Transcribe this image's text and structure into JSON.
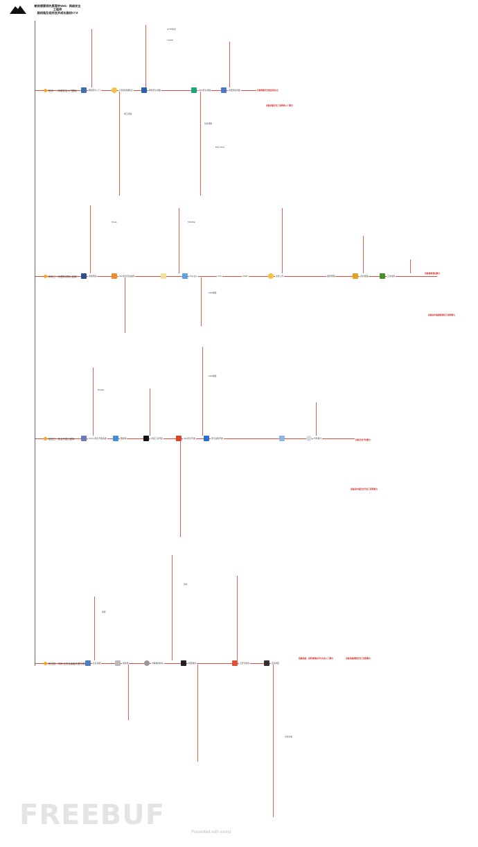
{
  "title_lines": [
    "敏锐想要领先黑客的Web · 网络安全",
    "工程师",
    "路线路及相关技术成长路线V7.8"
  ],
  "stages": [
    {
      "label": "阶段一：网络安全入门基础"
    },
    {
      "label": "阶段二：渗透测试核心技能"
    },
    {
      "label": "阶段三：安全开发工程师"
    },
    {
      "label": "阶段四：内网·云安全高级渗透与攻防"
    }
  ],
  "annotations": {
    "s1": "具备网络安全相关知识点",
    "s1_end": "具备初级安全工程师的入门能力",
    "s2": "具备渗透测试能力",
    "s2_end": "具备初中级渗透测试工程师能力",
    "s3": "具备安全开发能力",
    "s3_end": "具备初中级安全开发工程师能力",
    "s4_a": "掌握高级、高阶渗透技术方向及入门能力",
    "s4_b": "具备高级网络安全工程师能力"
  },
  "stage1_modules": [
    "网络安全入门",
    "计算机基础知识",
    "网络安全基础",
    "Web安全基础",
    "Linux系统",
    "渗透测试基础"
  ],
  "stage2_modules": [
    "渗透测试",
    "Web安全实战进阶",
    "SQL注入",
    "XSS",
    "CSRF",
    "文件上传",
    "漏洞原理",
    "逆向基础",
    "工具使用"
  ],
  "stage3_modules": [
    "Python安全开发基础",
    "数据库",
    "渗透工具开发",
    "Web安全开发",
    "安全运维开发",
    "代码审计"
  ],
  "stage4_modules": [
    "红队基础",
    "域渗透",
    "内网横向移动",
    "权限维持",
    "云安全攻防",
    "应急响应"
  ],
  "sample_nodes": [
    "HTTP协议",
    "TCP/IP",
    "端口扫描",
    "信息收集",
    "Burp Suite",
    "Nmap",
    "SQLMap",
    "MySQL",
    "PHP基础",
    "提权",
    "免杀",
    "日志分析"
  ],
  "watermark": "FREEBUF",
  "footer": "Presented with xmind"
}
